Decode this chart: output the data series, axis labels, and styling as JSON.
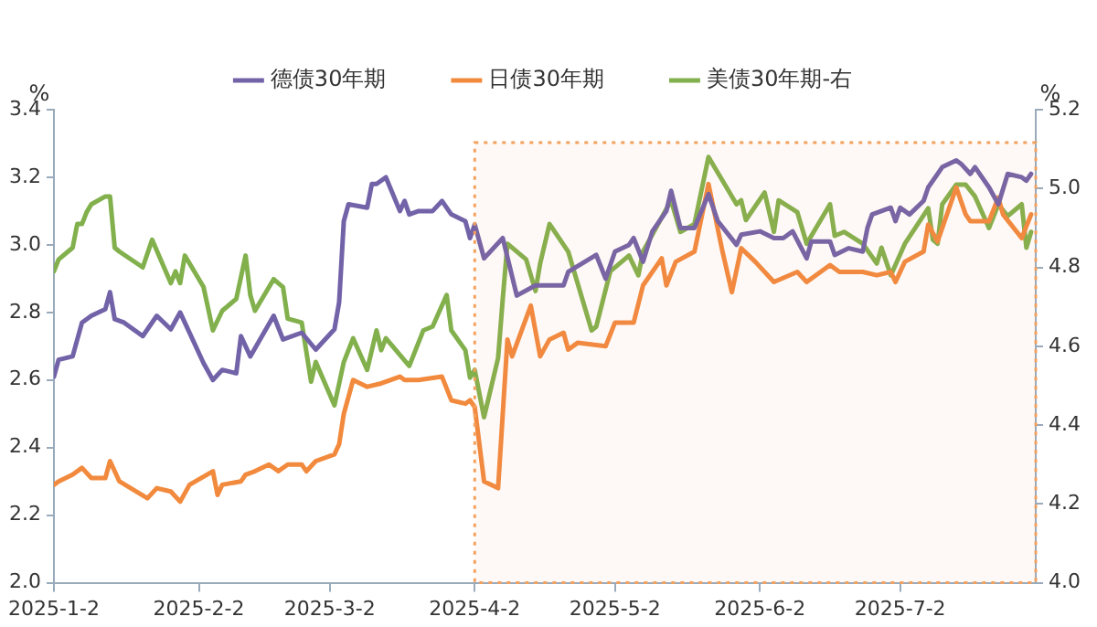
{
  "chart_data": {
    "type": "line",
    "ylabel": "%",
    "y2label": "%",
    "legend": "top",
    "grid": false,
    "marker": "none",
    "line_style": "solid",
    "xlim": [
      "2025-01-02",
      "2025-07-31"
    ],
    "xticks": [
      {
        "value": "2025-01-02",
        "label": "2025-1-2"
      },
      {
        "value": "2025-02-02",
        "label": "2025-2-2"
      },
      {
        "value": "2025-03-02",
        "label": "2025-3-2"
      },
      {
        "value": "2025-04-02",
        "label": "2025-4-2"
      },
      {
        "value": "2025-05-02",
        "label": "2025-5-2"
      },
      {
        "value": "2025-06-02",
        "label": "2025-6-2"
      },
      {
        "value": "2025-07-02",
        "label": "2025-7-2"
      }
    ],
    "ylim": [
      2.0,
      3.4
    ],
    "yticks": [
      {
        "value": 2,
        "label": "2.0"
      },
      2.2,
      2.4,
      2.6,
      2.8,
      {
        "value": 3,
        "label": "3.0"
      },
      3.2,
      3.4
    ],
    "y2lim": [
      4.0,
      5.2
    ],
    "y2ticks": [
      {
        "value": 4,
        "label": "4.0"
      },
      4.2,
      4.4,
      4.6,
      4.8,
      {
        "value": 5,
        "label": "5.0"
      },
      5.2
    ],
    "bands": [
      {
        "axis": "x",
        "from": "2025-04-02",
        "to": "2025-07-31",
        "color": "#f4a15e"
      }
    ],
    "series": [
      {
        "name": "德债30年期",
        "color": "#7262a8",
        "x": [
          "2025-01-02",
          "2025-01-03",
          "2025-01-06",
          "2025-01-08",
          "2025-01-10",
          "2025-01-13",
          "2025-01-14",
          "2025-01-15",
          "2025-01-17",
          "2025-01-21",
          "2025-01-24",
          "2025-01-27",
          "2025-01-29",
          "2025-02-03",
          "2025-02-05",
          "2025-02-07",
          "2025-02-10",
          "2025-02-11",
          "2025-02-13",
          "2025-02-18",
          "2025-02-20",
          "2025-02-24",
          "2025-02-27",
          "2025-03-03",
          "2025-03-04",
          "2025-03-05",
          "2025-03-06",
          "2025-03-10",
          "2025-03-11",
          "2025-03-12",
          "2025-03-14",
          "2025-03-17",
          "2025-03-18",
          "2025-03-19",
          "2025-03-21",
          "2025-03-24",
          "2025-03-26",
          "2025-03-28",
          "2025-03-31",
          "2025-04-01",
          "2025-04-02",
          "2025-04-04",
          "2025-04-08",
          "2025-04-11",
          "2025-04-15",
          "2025-04-21",
          "2025-04-22",
          "2025-04-28",
          "2025-04-30",
          "2025-05-02",
          "2025-05-05",
          "2025-05-06",
          "2025-05-08",
          "2025-05-10",
          "2025-05-13",
          "2025-05-14",
          "2025-05-16",
          "2025-05-19",
          "2025-05-22",
          "2025-05-24",
          "2025-05-28",
          "2025-05-29",
          "2025-06-02",
          "2025-06-05",
          "2025-06-07",
          "2025-06-09",
          "2025-06-12",
          "2025-06-13",
          "2025-06-17",
          "2025-06-18",
          "2025-06-21",
          "2025-06-24",
          "2025-06-25",
          "2025-06-26",
          "2025-06-30",
          "2025-07-01",
          "2025-07-02",
          "2025-07-04",
          "2025-07-07",
          "2025-07-08",
          "2025-07-11",
          "2025-07-14",
          "2025-07-15",
          "2025-07-17",
          "2025-07-18",
          "2025-07-21",
          "2025-07-23",
          "2025-07-25",
          "2025-07-28",
          "2025-07-29",
          "2025-07-30"
        ],
        "values": [
          2.61,
          2.66,
          2.67,
          2.77,
          2.79,
          2.81,
          2.86,
          2.78,
          2.77,
          2.73,
          2.79,
          2.75,
          2.8,
          2.65,
          2.6,
          2.63,
          2.62,
          2.73,
          2.67,
          2.79,
          2.72,
          2.74,
          2.69,
          2.75,
          2.83,
          3.07,
          3.12,
          3.11,
          3.18,
          3.18,
          3.2,
          3.1,
          3.13,
          3.09,
          3.1,
          3.1,
          3.13,
          3.09,
          3.07,
          3.02,
          3.06,
          2.96,
          3.02,
          2.85,
          2.88,
          2.88,
          2.92,
          2.97,
          2.9,
          2.98,
          3.0,
          3.02,
          2.95,
          3.04,
          3.1,
          3.16,
          3.05,
          3.05,
          3.15,
          3.07,
          3.0,
          3.03,
          3.04,
          3.02,
          3.02,
          3.04,
          2.96,
          3.01,
          3.01,
          2.97,
          2.99,
          2.98,
          3.05,
          3.09,
          3.11,
          3.07,
          3.11,
          3.09,
          3.13,
          3.17,
          3.23,
          3.25,
          3.24,
          3.21,
          3.23,
          3.17,
          3.12,
          3.21,
          3.2,
          3.19,
          3.21
        ]
      },
      {
        "name": "日债30年期",
        "color": "#f28a3e",
        "x": [
          "2025-01-02",
          "2025-01-03",
          "2025-01-06",
          "2025-01-08",
          "2025-01-10",
          "2025-01-13",
          "2025-01-14",
          "2025-01-16",
          "2025-01-22",
          "2025-01-24",
          "2025-01-27",
          "2025-01-29",
          "2025-01-31",
          "2025-02-05",
          "2025-02-06",
          "2025-02-07",
          "2025-02-11",
          "2025-02-12",
          "2025-02-14",
          "2025-02-17",
          "2025-02-19",
          "2025-02-21",
          "2025-02-24",
          "2025-02-25",
          "2025-02-27",
          "2025-03-03",
          "2025-03-04",
          "2025-03-05",
          "2025-03-07",
          "2025-03-10",
          "2025-03-13",
          "2025-03-17",
          "2025-03-18",
          "2025-03-21",
          "2025-03-26",
          "2025-03-28",
          "2025-03-31",
          "2025-04-01",
          "2025-04-02",
          "2025-04-04",
          "2025-04-07",
          "2025-04-09",
          "2025-04-10",
          "2025-04-14",
          "2025-04-16",
          "2025-04-18",
          "2025-04-21",
          "2025-04-22",
          "2025-04-24",
          "2025-04-30",
          "2025-05-02",
          "2025-05-06",
          "2025-05-08",
          "2025-05-12",
          "2025-05-13",
          "2025-05-15",
          "2025-05-19",
          "2025-05-22",
          "2025-05-25",
          "2025-05-27",
          "2025-05-29",
          "2025-06-01",
          "2025-06-05",
          "2025-06-10",
          "2025-06-12",
          "2025-06-17",
          "2025-06-19",
          "2025-06-24",
          "2025-06-27",
          "2025-06-30",
          "2025-07-01",
          "2025-07-03",
          "2025-07-07",
          "2025-07-08",
          "2025-07-10",
          "2025-07-14",
          "2025-07-15",
          "2025-07-16",
          "2025-07-17",
          "2025-07-21",
          "2025-07-23",
          "2025-07-24",
          "2025-07-28",
          "2025-07-30"
        ],
        "values": [
          2.29,
          2.3,
          2.32,
          2.34,
          2.31,
          2.31,
          2.36,
          2.3,
          2.25,
          2.28,
          2.27,
          2.24,
          2.29,
          2.33,
          2.26,
          2.29,
          2.3,
          2.32,
          2.33,
          2.35,
          2.33,
          2.35,
          2.35,
          2.33,
          2.36,
          2.38,
          2.41,
          2.5,
          2.6,
          2.58,
          2.59,
          2.61,
          2.6,
          2.6,
          2.61,
          2.54,
          2.53,
          2.54,
          2.52,
          2.3,
          2.28,
          2.72,
          2.67,
          2.82,
          2.67,
          2.72,
          2.74,
          2.69,
          2.71,
          2.7,
          2.77,
          2.77,
          2.88,
          2.96,
          2.88,
          2.95,
          2.98,
          3.18,
          2.98,
          2.86,
          2.99,
          2.95,
          2.89,
          2.92,
          2.89,
          2.94,
          2.92,
          2.92,
          2.91,
          2.92,
          2.89,
          2.95,
          2.98,
          3.06,
          3.01,
          3.17,
          3.13,
          3.09,
          3.07,
          3.07,
          3.14,
          3.09,
          3.02,
          3.09
        ]
      },
      {
        "name": "美债30年期-右",
        "color": "#82b04c",
        "axis": "y2",
        "x": [
          "2025-01-02",
          "2025-01-03",
          "2025-01-06",
          "2025-01-07",
          "2025-01-08",
          "2025-01-09",
          "2025-01-10",
          "2025-01-13",
          "2025-01-14",
          "2025-01-15",
          "2025-01-16",
          "2025-01-21",
          "2025-01-23",
          "2025-01-27",
          "2025-01-28",
          "2025-01-29",
          "2025-01-30",
          "2025-02-03",
          "2025-02-05",
          "2025-02-07",
          "2025-02-10",
          "2025-02-12",
          "2025-02-13",
          "2025-02-14",
          "2025-02-18",
          "2025-02-19",
          "2025-02-20",
          "2025-02-21",
          "2025-02-24",
          "2025-02-26",
          "2025-02-27",
          "2025-03-03",
          "2025-03-05",
          "2025-03-07",
          "2025-03-10",
          "2025-03-12",
          "2025-03-13",
          "2025-03-14",
          "2025-03-19",
          "2025-03-22",
          "2025-03-24",
          "2025-03-27",
          "2025-03-28",
          "2025-03-31",
          "2025-04-01",
          "2025-04-02",
          "2025-04-04",
          "2025-04-07",
          "2025-04-08",
          "2025-04-09",
          "2025-04-13",
          "2025-04-15",
          "2025-04-16",
          "2025-04-18",
          "2025-04-22",
          "2025-04-24",
          "2025-04-27",
          "2025-04-28",
          "2025-05-01",
          "2025-05-05",
          "2025-05-07",
          "2025-05-08",
          "2025-05-14",
          "2025-05-16",
          "2025-05-19",
          "2025-05-22",
          "2025-05-24",
          "2025-05-28",
          "2025-05-29",
          "2025-05-30",
          "2025-06-03",
          "2025-06-05",
          "2025-06-06",
          "2025-06-10",
          "2025-06-12",
          "2025-06-17",
          "2025-06-18",
          "2025-06-20",
          "2025-06-24",
          "2025-06-27",
          "2025-06-28",
          "2025-06-30",
          "2025-07-03",
          "2025-07-08",
          "2025-07-09",
          "2025-07-10",
          "2025-07-11",
          "2025-07-14",
          "2025-07-16",
          "2025-07-18",
          "2025-07-21",
          "2025-07-23",
          "2025-07-25",
          "2025-07-28",
          "2025-07-29",
          "2025-07-30"
        ],
        "values": [
          4.79,
          4.82,
          4.85,
          4.91,
          4.91,
          4.94,
          4.96,
          4.98,
          4.98,
          4.85,
          4.84,
          4.8,
          4.87,
          4.76,
          4.79,
          4.76,
          4.83,
          4.75,
          4.64,
          4.69,
          4.72,
          4.83,
          4.73,
          4.69,
          4.77,
          4.76,
          4.75,
          4.67,
          4.66,
          4.51,
          4.56,
          4.45,
          4.56,
          4.62,
          4.54,
          4.64,
          4.59,
          4.62,
          4.55,
          4.64,
          4.65,
          4.73,
          4.64,
          4.59,
          4.52,
          4.54,
          4.42,
          4.57,
          4.72,
          4.86,
          4.82,
          4.74,
          4.81,
          4.91,
          4.84,
          4.76,
          4.64,
          4.65,
          4.79,
          4.83,
          4.78,
          4.84,
          4.97,
          4.89,
          4.91,
          5.08,
          5.04,
          4.96,
          4.97,
          4.92,
          4.99,
          4.89,
          4.97,
          4.94,
          4.86,
          4.96,
          4.88,
          4.89,
          4.86,
          4.81,
          4.85,
          4.78,
          4.86,
          4.95,
          4.87,
          4.86,
          4.96,
          5.01,
          5.01,
          4.98,
          4.9,
          4.96,
          4.93,
          4.96,
          4.85,
          4.89
        ]
      }
    ]
  }
}
